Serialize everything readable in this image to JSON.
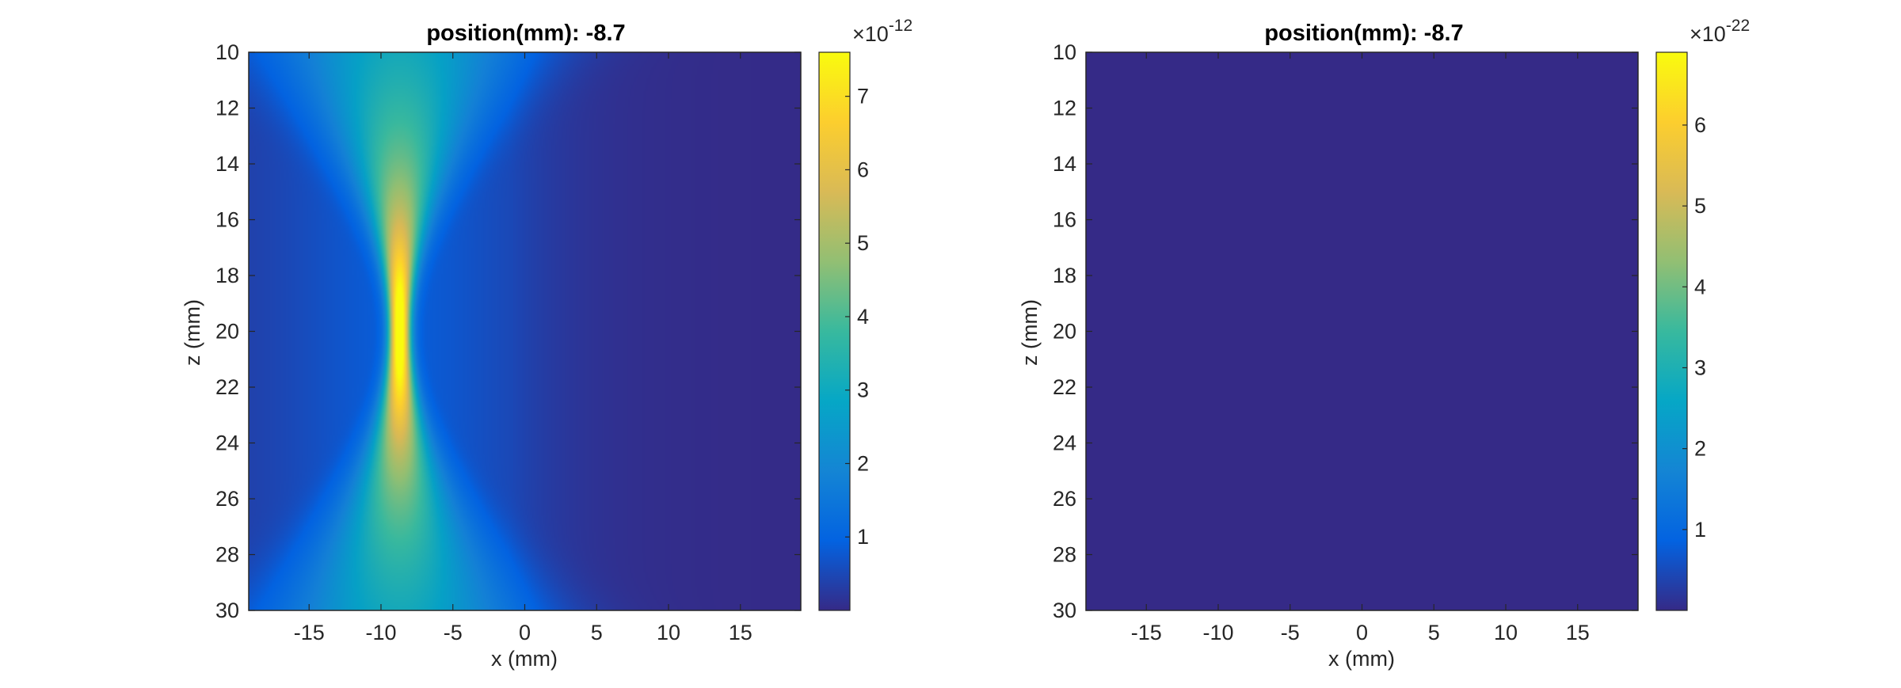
{
  "chart_data": [
    {
      "type": "heatmap",
      "title": "position(mm): -8.7",
      "xlabel": "x (mm)",
      "ylabel": "z (mm)",
      "xlim": [
        -19.2,
        19.2
      ],
      "ylim": [
        10,
        30
      ],
      "y_reversed": true,
      "xticks": [
        -15,
        -10,
        -5,
        0,
        5,
        10,
        15
      ],
      "yticks": [
        10,
        12,
        14,
        16,
        18,
        20,
        22,
        24,
        26,
        28,
        30
      ],
      "colormap": "parula",
      "colorbar": {
        "clim": [
          0,
          7.6
        ],
        "ticks": [
          1,
          2,
          3,
          4,
          5,
          6,
          7
        ],
        "exponent_base": "×10",
        "exponent": "-12"
      },
      "field": {
        "beam_center_x": -8.7,
        "focal_z": 20,
        "peak_value": 7.6,
        "background_value": 0.3,
        "description_unit": "×10^-12"
      }
    },
    {
      "type": "heatmap",
      "title": "position(mm): -8.7",
      "xlabel": "x (mm)",
      "ylabel": "z (mm)",
      "xlim": [
        -19.2,
        19.2
      ],
      "ylim": [
        10,
        30
      ],
      "y_reversed": true,
      "xticks": [
        -15,
        -10,
        -5,
        0,
        5,
        10,
        15
      ],
      "yticks": [
        10,
        12,
        14,
        16,
        18,
        20,
        22,
        24,
        26,
        28,
        30
      ],
      "colormap": "parula",
      "colorbar": {
        "clim": [
          0,
          6.9
        ],
        "ticks": [
          1,
          2,
          3,
          4,
          5,
          6
        ],
        "exponent_base": "×10",
        "exponent": "-22"
      },
      "field": {
        "uniform_value": 0
      }
    }
  ]
}
